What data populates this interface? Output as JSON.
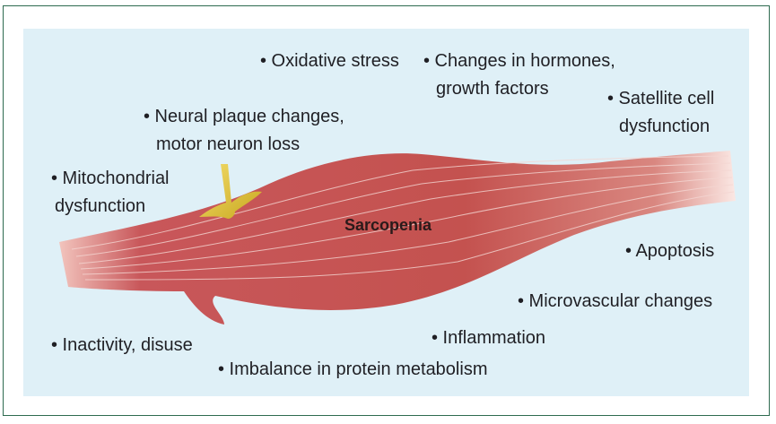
{
  "center_label": "Sarcopenia",
  "factors": {
    "oxidative": [
      "• Oxidative stress"
    ],
    "hormones": [
      "• Changes in hormones,",
      "growth factors"
    ],
    "satellite": [
      "• Satellite cell",
      "dysfunction"
    ],
    "neural": [
      "• Neural plaque changes,",
      "motor neuron loss"
    ],
    "mito": [
      "• Mitochondrial",
      "dysfunction"
    ],
    "apoptosis": [
      "• Apoptosis"
    ],
    "microvascular": [
      "• Microvascular changes"
    ],
    "inflammation": [
      "• Inflammation"
    ],
    "inactivity": [
      "• Inactivity, disuse"
    ],
    "protein": [
      "• Imbalance in protein metabolism"
    ]
  },
  "colors": {
    "border": "#2e6b50",
    "panel": "#dff0f7",
    "muscle": "#c4524f",
    "nerve": "#e0c030"
  }
}
